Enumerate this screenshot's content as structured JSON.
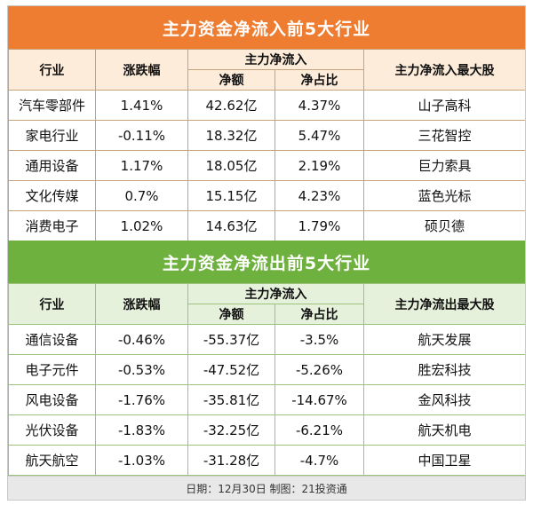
{
  "inflow": {
    "title": "主力资金净流入前5大行业",
    "headers": {
      "industry": "行业",
      "change": "涨跌幅",
      "netflow_group": "主力净流入",
      "net_amount": "净额",
      "net_ratio": "净占比",
      "top_stock": "主力净流入最大股"
    },
    "rows": [
      {
        "industry": "汽车零部件",
        "change": "1.41%",
        "net_amount": "42.62亿",
        "net_ratio": "4.37%",
        "top_stock": "山子高科"
      },
      {
        "industry": "家电行业",
        "change": "-0.11%",
        "net_amount": "18.32亿",
        "net_ratio": "5.47%",
        "top_stock": "三花智控"
      },
      {
        "industry": "通用设备",
        "change": "1.17%",
        "net_amount": "18.05亿",
        "net_ratio": "2.19%",
        "top_stock": "巨力索具"
      },
      {
        "industry": "文化传媒",
        "change": "0.7%",
        "net_amount": "15.15亿",
        "net_ratio": "4.23%",
        "top_stock": "蓝色光标"
      },
      {
        "industry": "消费电子",
        "change": "1.02%",
        "net_amount": "14.63亿",
        "net_ratio": "1.79%",
        "top_stock": "硕贝德"
      }
    ]
  },
  "outflow": {
    "title": "主力资金净流出前5大行业",
    "headers": {
      "industry": "行业",
      "change": "涨跌幅",
      "netflow_group": "主力净流入",
      "net_amount": "净额",
      "net_ratio": "净占比",
      "top_stock": "主力净流出最大股"
    },
    "rows": [
      {
        "industry": "通信设备",
        "change": "-0.46%",
        "net_amount": "-55.37亿",
        "net_ratio": "-3.5%",
        "top_stock": "航天发展"
      },
      {
        "industry": "电子元件",
        "change": "-0.53%",
        "net_amount": "-47.52亿",
        "net_ratio": "-5.26%",
        "top_stock": "胜宏科技"
      },
      {
        "industry": "风电设备",
        "change": "-1.76%",
        "net_amount": "-35.81亿",
        "net_ratio": "-14.67%",
        "top_stock": "金风科技"
      },
      {
        "industry": "光伏设备",
        "change": "-1.83%",
        "net_amount": "-32.25亿",
        "net_ratio": "-6.21%",
        "top_stock": "航天机电"
      },
      {
        "industry": "航天航空",
        "change": "-1.03%",
        "net_amount": "-31.28亿",
        "net_ratio": "-4.7%",
        "top_stock": "中国卫星"
      }
    ]
  },
  "footer": "日期：12月30日 制图：21投资通",
  "colors": {
    "inflow_banner": "#ee7d32",
    "outflow_banner": "#6fb13f"
  }
}
